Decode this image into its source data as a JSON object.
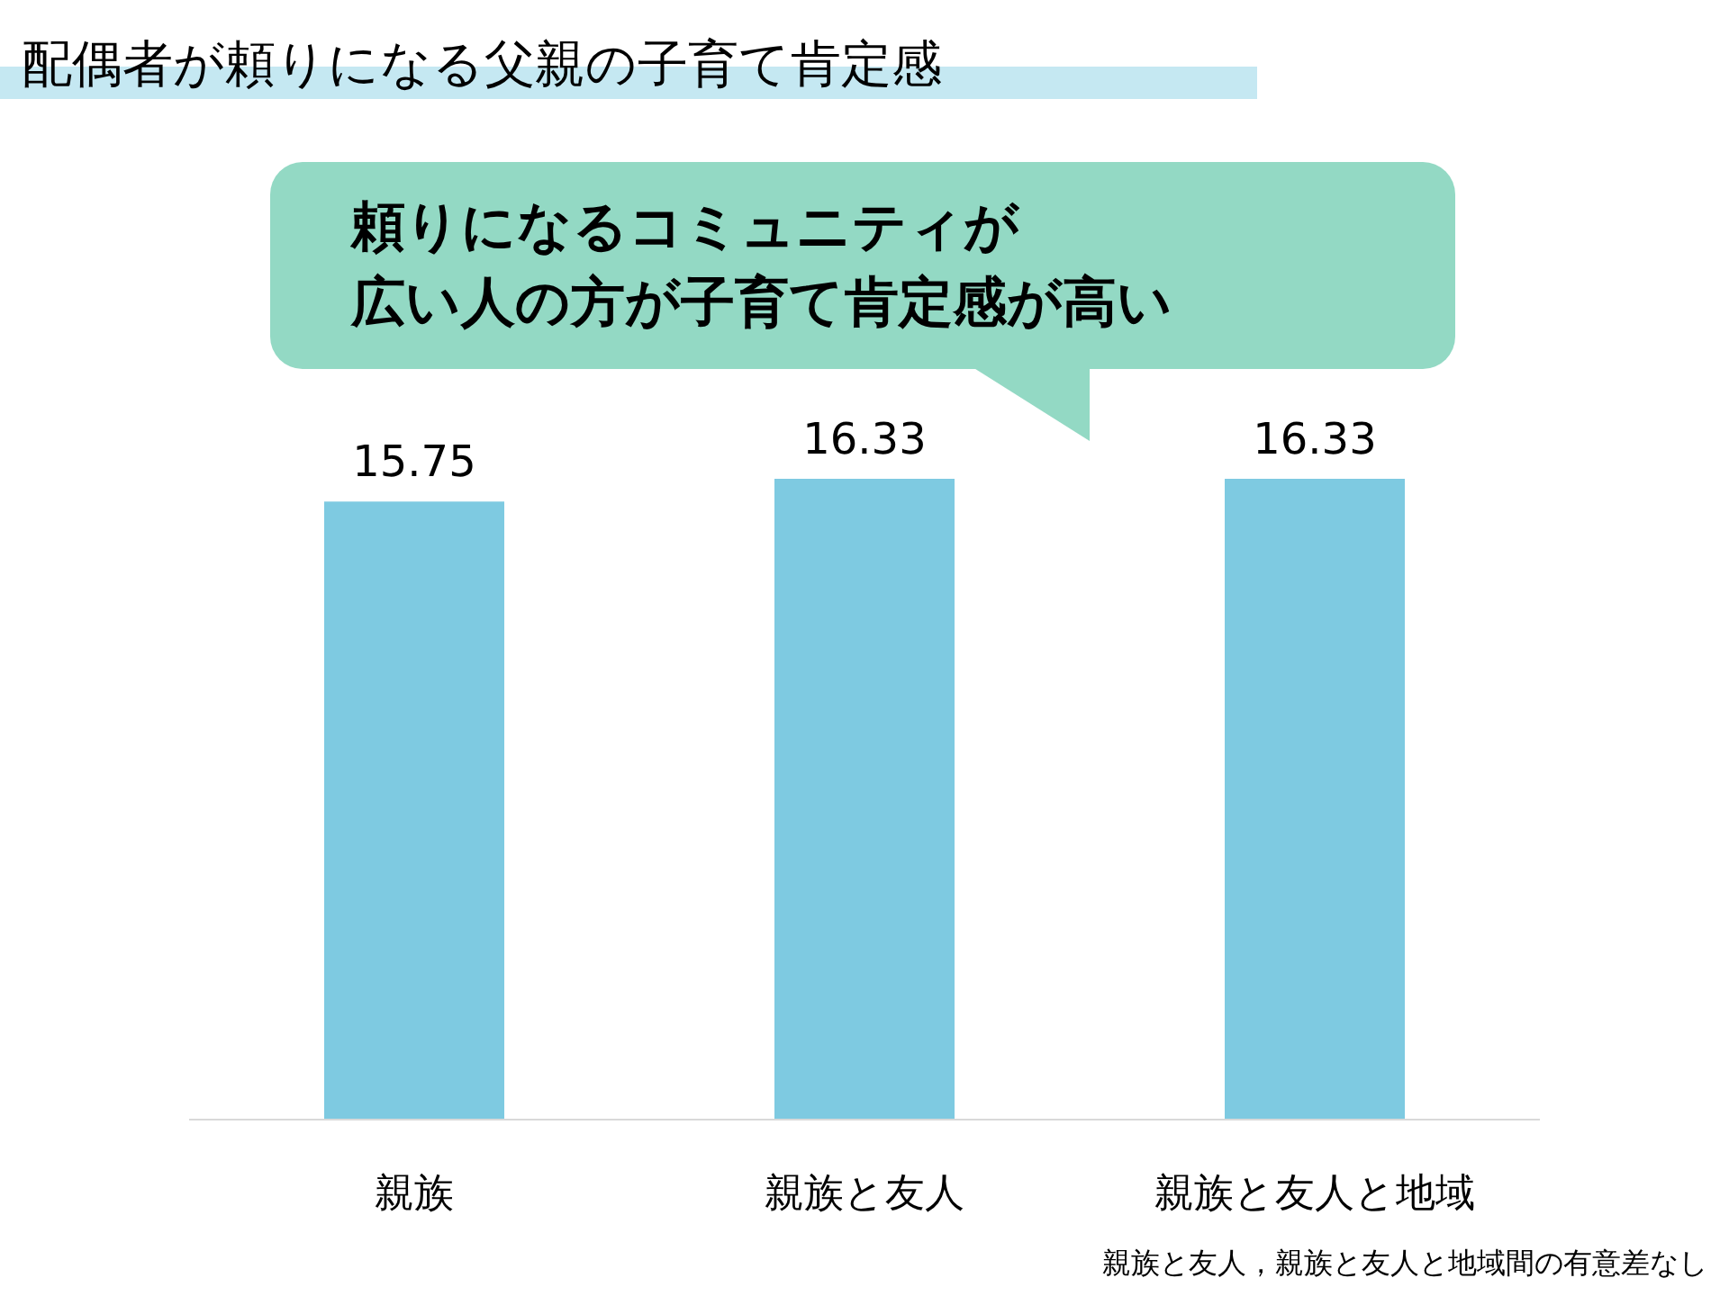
{
  "chart_data": {
    "type": "bar",
    "title": "配偶者が頼りになる父親の子育て肯定感",
    "categories": [
      "親族",
      "親族と友人",
      "親族と友人と地域"
    ],
    "values": [
      15.75,
      16.33,
      16.33
    ],
    "color": "#7ecae1",
    "tick_labels": "x",
    "data_labels": true,
    "annotations": [
      "頼りになるコミュニティが",
      "広い人の方が子育て肯定感が高い",
      "親族と友人，親族と友人と地域間の有意差なし"
    ]
  }
}
